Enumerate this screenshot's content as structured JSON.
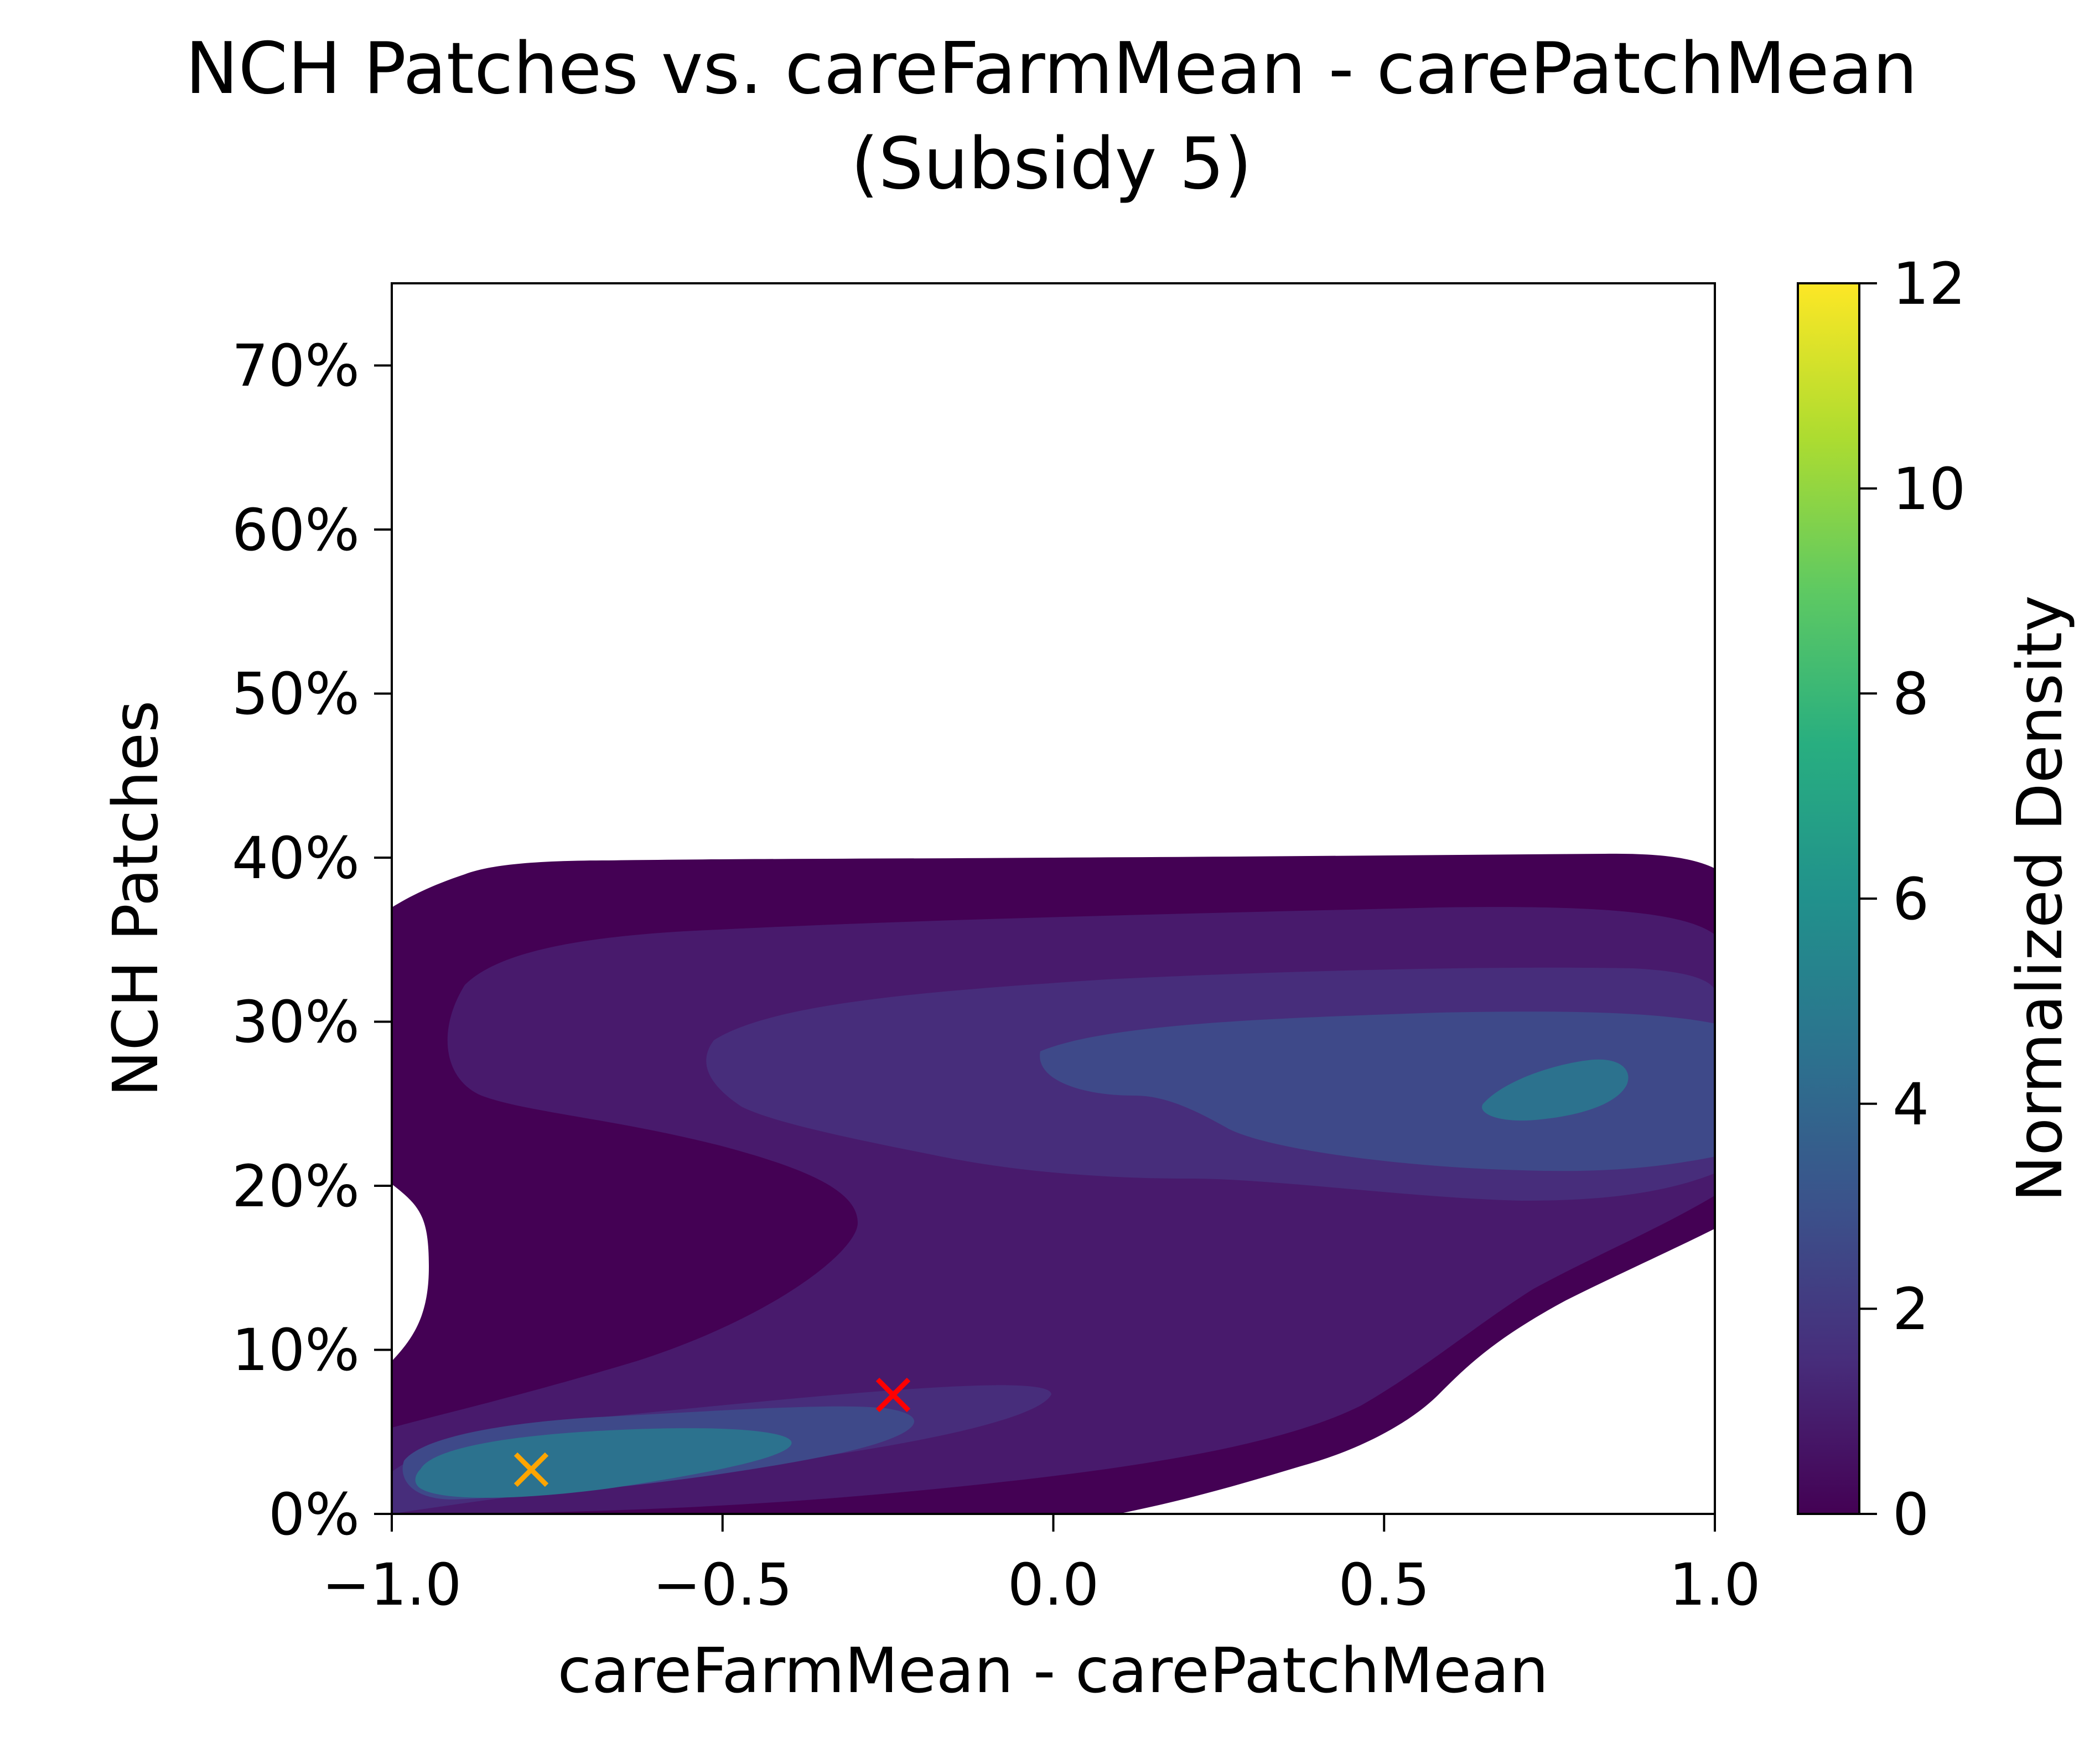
{
  "chart_data": {
    "type": "kde-contour",
    "title_line1": "NCH Patches vs. careFarmMean - carePatchMean",
    "title_line2": "(Subsidy 5)",
    "xlabel": "careFarmMean - carePatchMean",
    "ylabel": "NCH Patches",
    "xlim": [
      -1.0,
      1.0
    ],
    "ylim": [
      0,
      0.75
    ],
    "xticks": [
      -1.0,
      -0.5,
      0.0,
      0.5,
      1.0
    ],
    "xtick_labels": [
      "−1.0",
      "−0.5",
      "0.0",
      "0.5",
      "1.0"
    ],
    "yticks": [
      0,
      0.1,
      0.2,
      0.3,
      0.4,
      0.5,
      0.6,
      0.7
    ],
    "ytick_labels": [
      "0%",
      "10%",
      "20%",
      "30%",
      "40%",
      "50%",
      "60%",
      "70%"
    ],
    "colorbar": {
      "label": "Normalized Density",
      "range": [
        0,
        12
      ],
      "ticks": [
        0,
        2,
        4,
        6,
        8,
        10,
        12
      ],
      "tick_labels": [
        "0",
        "2",
        "4",
        "6",
        "8",
        "10",
        "12"
      ],
      "colormap": "viridis"
    },
    "density_peaks": [
      {
        "x": -0.65,
        "y": 0.03,
        "level": 5
      },
      {
        "x": 0.75,
        "y": 0.26,
        "level": 5
      }
    ],
    "markers": [
      {
        "x": -0.79,
        "y": 0.027,
        "symbol": "x",
        "color": "#ffa500"
      },
      {
        "x": -0.24,
        "y": 0.072,
        "symbol": "x",
        "color": "#ff0000"
      }
    ],
    "grid": false
  }
}
